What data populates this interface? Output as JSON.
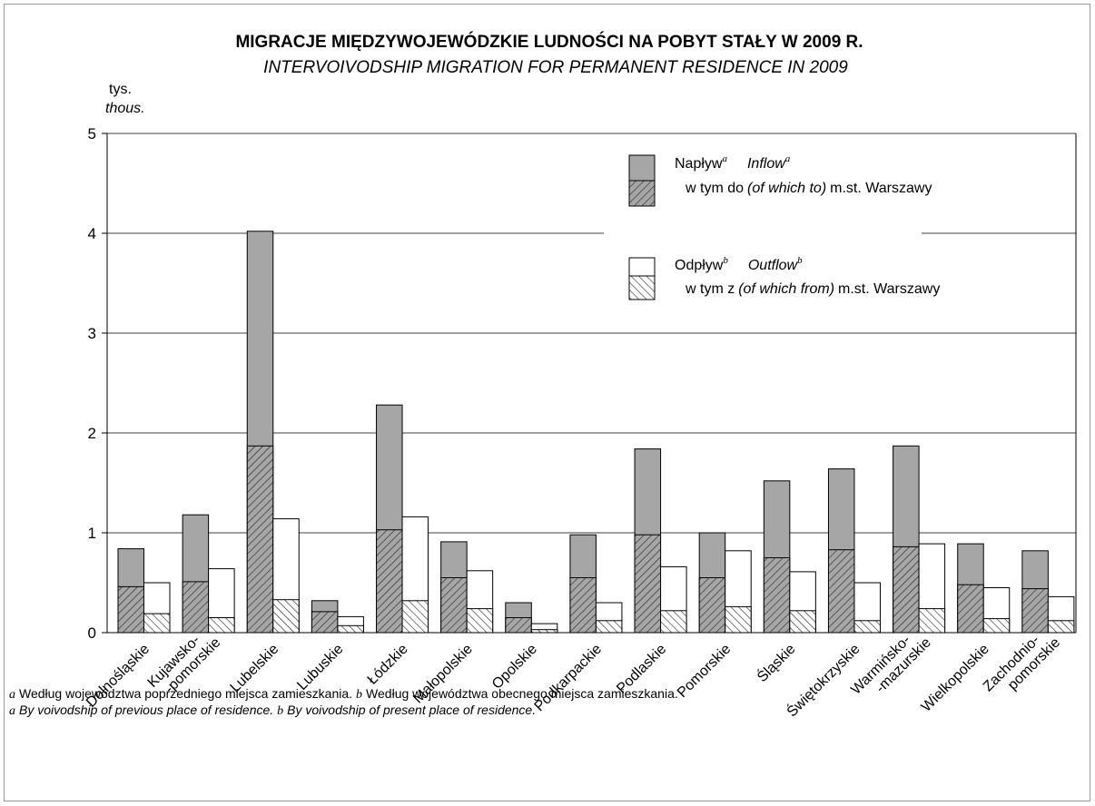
{
  "chart_data": {
    "type": "bar",
    "title": "MIGRACJE MIĘDZYWOJEWÓDZKIE LUDNOŚCI NA POBYT STAŁY W 2009 R.",
    "subtitle": "INTERVOIVODSHIP MIGRATION FOR PERMANENT RESIDENCE IN 2009",
    "y_label": "tys.",
    "y_label_en": "thous.",
    "categories": [
      "Dolnośląskie",
      "Kujawsko-\n-pomorskie",
      "Lubelskie",
      "Lubuskie",
      "Łódzkie",
      "Małopolskie",
      "Opolskie",
      "Podkarpackie",
      "Podlaskie",
      "Pomorskie",
      "Śląskie",
      "Świętokrzyskie",
      "Warmińsko-\n-mazurskie",
      "Wielkopolskie",
      "Zachodnio-\npomorskie"
    ],
    "series": [
      {
        "name": "Napływ",
        "name_en": "Inflow",
        "footnote": "a",
        "color": "#a6a6a6",
        "group": 0,
        "values": [
          0.84,
          1.18,
          4.02,
          0.32,
          2.28,
          0.91,
          0.3,
          0.98,
          1.84,
          1.0,
          1.52,
          1.64,
          1.87,
          0.89,
          0.82
        ]
      },
      {
        "name": "w tym do",
        "name_en": "(of which to)",
        "name_suffix": "m.st. Warszawy",
        "color": "#a6a6a6",
        "hatch": "forward",
        "group": 0,
        "values": [
          0.46,
          0.51,
          1.87,
          0.21,
          1.03,
          0.55,
          0.15,
          0.55,
          0.98,
          0.55,
          0.75,
          0.83,
          0.86,
          0.48,
          0.44
        ]
      },
      {
        "name": "Odpływ",
        "name_en": "Outflow",
        "footnote": "b",
        "color": "#ffffff",
        "group": 1,
        "values": [
          0.5,
          0.64,
          1.14,
          0.16,
          1.16,
          0.62,
          0.09,
          0.3,
          0.66,
          0.82,
          0.61,
          0.5,
          0.89,
          0.45,
          0.36
        ]
      },
      {
        "name": "w tym z",
        "name_en": "(of which from)",
        "name_suffix": "m.st. Warszawy",
        "color": "#ffffff",
        "hatch": "back",
        "group": 1,
        "values": [
          0.19,
          0.15,
          0.33,
          0.07,
          0.32,
          0.24,
          0.03,
          0.12,
          0.22,
          0.26,
          0.22,
          0.12,
          0.24,
          0.14,
          0.12
        ]
      }
    ],
    "ylim": [
      0,
      5
    ],
    "yticks": [
      0,
      1,
      2,
      3,
      4,
      5
    ],
    "grid": true,
    "footnotes": [
      [
        {
          "marker": "a",
          "text": "Według województwa poprzedniego miejsca zamieszkania."
        },
        {
          "marker": "b",
          "text": "Według województwa obecnego miejsca zamieszkania."
        }
      ],
      [
        {
          "marker": "a",
          "text": "By voivodship of previous place of residence."
        },
        {
          "marker": "b",
          "text": "By voivodship of present place of residence."
        }
      ]
    ]
  }
}
